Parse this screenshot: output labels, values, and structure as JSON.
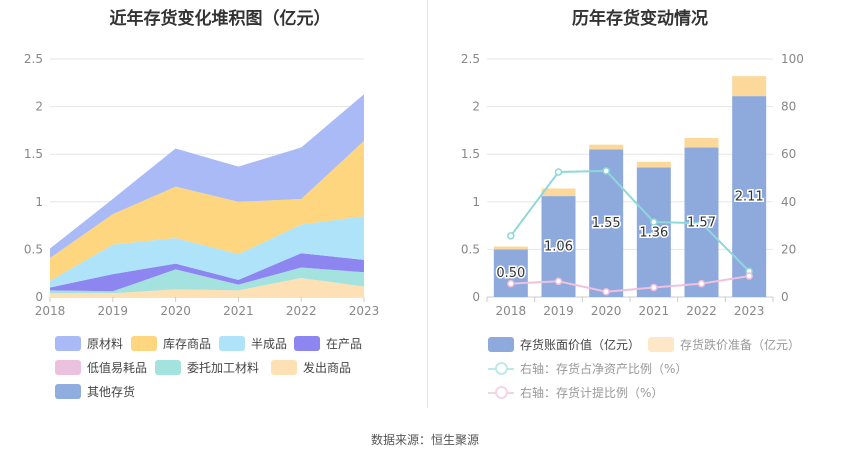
{
  "left_title": "近年存货变化堆积图（亿元）",
  "right_title": "历年存货变动情况",
  "source": "数据来源：恒生聚源",
  "colors": {
    "原材料": "#a9baf6",
    "库存商品": "#fdd67f",
    "半成品": "#aee3fa",
    "在产品": "#8e86f0",
    "低值易耗品": "#ecc1df",
    "委托加工材料": "#a4e2e0",
    "发出商品": "#fde0b4",
    "其他存货": "#8fadde",
    "bar": "#8eaadc",
    "bar_top": "#fcd99b",
    "line_ratio": "#8fd8d8",
    "line_provision": "#f0c0dc"
  },
  "chart_data": [
    {
      "type": "area",
      "stacked": true,
      "title": "近年存货变化堆积图（亿元）",
      "x": [
        "2018",
        "2019",
        "2020",
        "2021",
        "2022",
        "2023"
      ],
      "ylim": [
        0,
        2.5
      ],
      "yticks": [
        "0",
        "0.5",
        "1",
        "1.5",
        "2",
        "2.5"
      ],
      "grid": true,
      "legend_position": "bottom",
      "series": [
        {
          "name": "发出商品",
          "values": [
            0.04,
            0.04,
            0.08,
            0.07,
            0.2,
            0.11
          ]
        },
        {
          "name": "委托加工材料",
          "values": [
            0.03,
            0.02,
            0.21,
            0.06,
            0.11,
            0.15
          ]
        },
        {
          "name": "低值易耗品",
          "values": [
            0.0,
            0.0,
            0.0,
            0.0,
            0.0,
            0.0
          ]
        },
        {
          "name": "在产品",
          "values": [
            0.03,
            0.18,
            0.06,
            0.05,
            0.15,
            0.13
          ]
        },
        {
          "name": "半成品",
          "values": [
            0.07,
            0.31,
            0.27,
            0.27,
            0.3,
            0.46
          ]
        },
        {
          "name": "库存商品",
          "values": [
            0.24,
            0.32,
            0.54,
            0.55,
            0.27,
            0.79
          ]
        },
        {
          "name": "原材料",
          "values": [
            0.1,
            0.16,
            0.4,
            0.37,
            0.54,
            0.49
          ]
        },
        {
          "name": "其他存货",
          "values": [
            0.0,
            0.0,
            0.0,
            0.0,
            0.0,
            0.0
          ]
        }
      ],
      "legend": [
        "原材料",
        "库存商品",
        "半成品",
        "在产品",
        "低值易耗品",
        "委托加工材料",
        "发出商品",
        "其他存货"
      ]
    },
    {
      "type": "bar",
      "title": "历年存货变动情况",
      "categories": [
        "2018",
        "2019",
        "2020",
        "2021",
        "2022",
        "2023"
      ],
      "ylim": [
        0,
        2.5
      ],
      "yticks": [
        "0",
        "0.5",
        "1",
        "1.5",
        "2",
        "2.5"
      ],
      "y2lim": [
        0,
        100
      ],
      "y2ticks": [
        "0",
        "20",
        "40",
        "60",
        "80",
        "100"
      ],
      "grid": true,
      "legend_position": "bottom",
      "series": [
        {
          "name": "存货账面价值（亿元）",
          "type": "bar",
          "values": [
            0.5,
            1.06,
            1.55,
            1.36,
            1.57,
            2.11
          ],
          "labels": [
            "0.50",
            "1.06",
            "1.55",
            "1.36",
            "1.57",
            "2.11"
          ]
        },
        {
          "name": "存货跌价准备（亿元）",
          "type": "bar",
          "stacked": true,
          "values": [
            0.03,
            0.08,
            0.05,
            0.06,
            0.1,
            0.21
          ]
        },
        {
          "name": "右轴：存货占净资产比例（%）",
          "type": "line",
          "axis": "right",
          "values": [
            25.7,
            52.5,
            53.0,
            31.5,
            31.0,
            10.8
          ]
        },
        {
          "name": "右轴：存货计提比例（%）",
          "type": "line",
          "axis": "right",
          "values": [
            5.6,
            6.6,
            2.2,
            4.0,
            5.6,
            8.8
          ]
        }
      ]
    }
  ],
  "legend_left": [
    {
      "label": "原材料",
      "color": "#a9baf6"
    },
    {
      "label": "库存商品",
      "color": "#fdd67f"
    },
    {
      "label": "半成品",
      "color": "#aee3fa"
    },
    {
      "label": "在产品",
      "color": "#8e86f0"
    },
    {
      "label": "低值易耗品",
      "color": "#ecc1df"
    },
    {
      "label": "委托加工材料",
      "color": "#a4e2e0"
    },
    {
      "label": "发出商品",
      "color": "#fde0b4"
    },
    {
      "label": "其他存货",
      "color": "#8fadde"
    }
  ],
  "legend_right": [
    {
      "label": "存货账面价值（亿元）",
      "kind": "bar"
    },
    {
      "label": "存货跌价准备（亿元）",
      "kind": "bar_top"
    },
    {
      "label": "右轴：存货占净资产比例（%）",
      "kind": "line_ratio"
    },
    {
      "label": "右轴：存货计提比例（%）",
      "kind": "line_provision"
    }
  ]
}
